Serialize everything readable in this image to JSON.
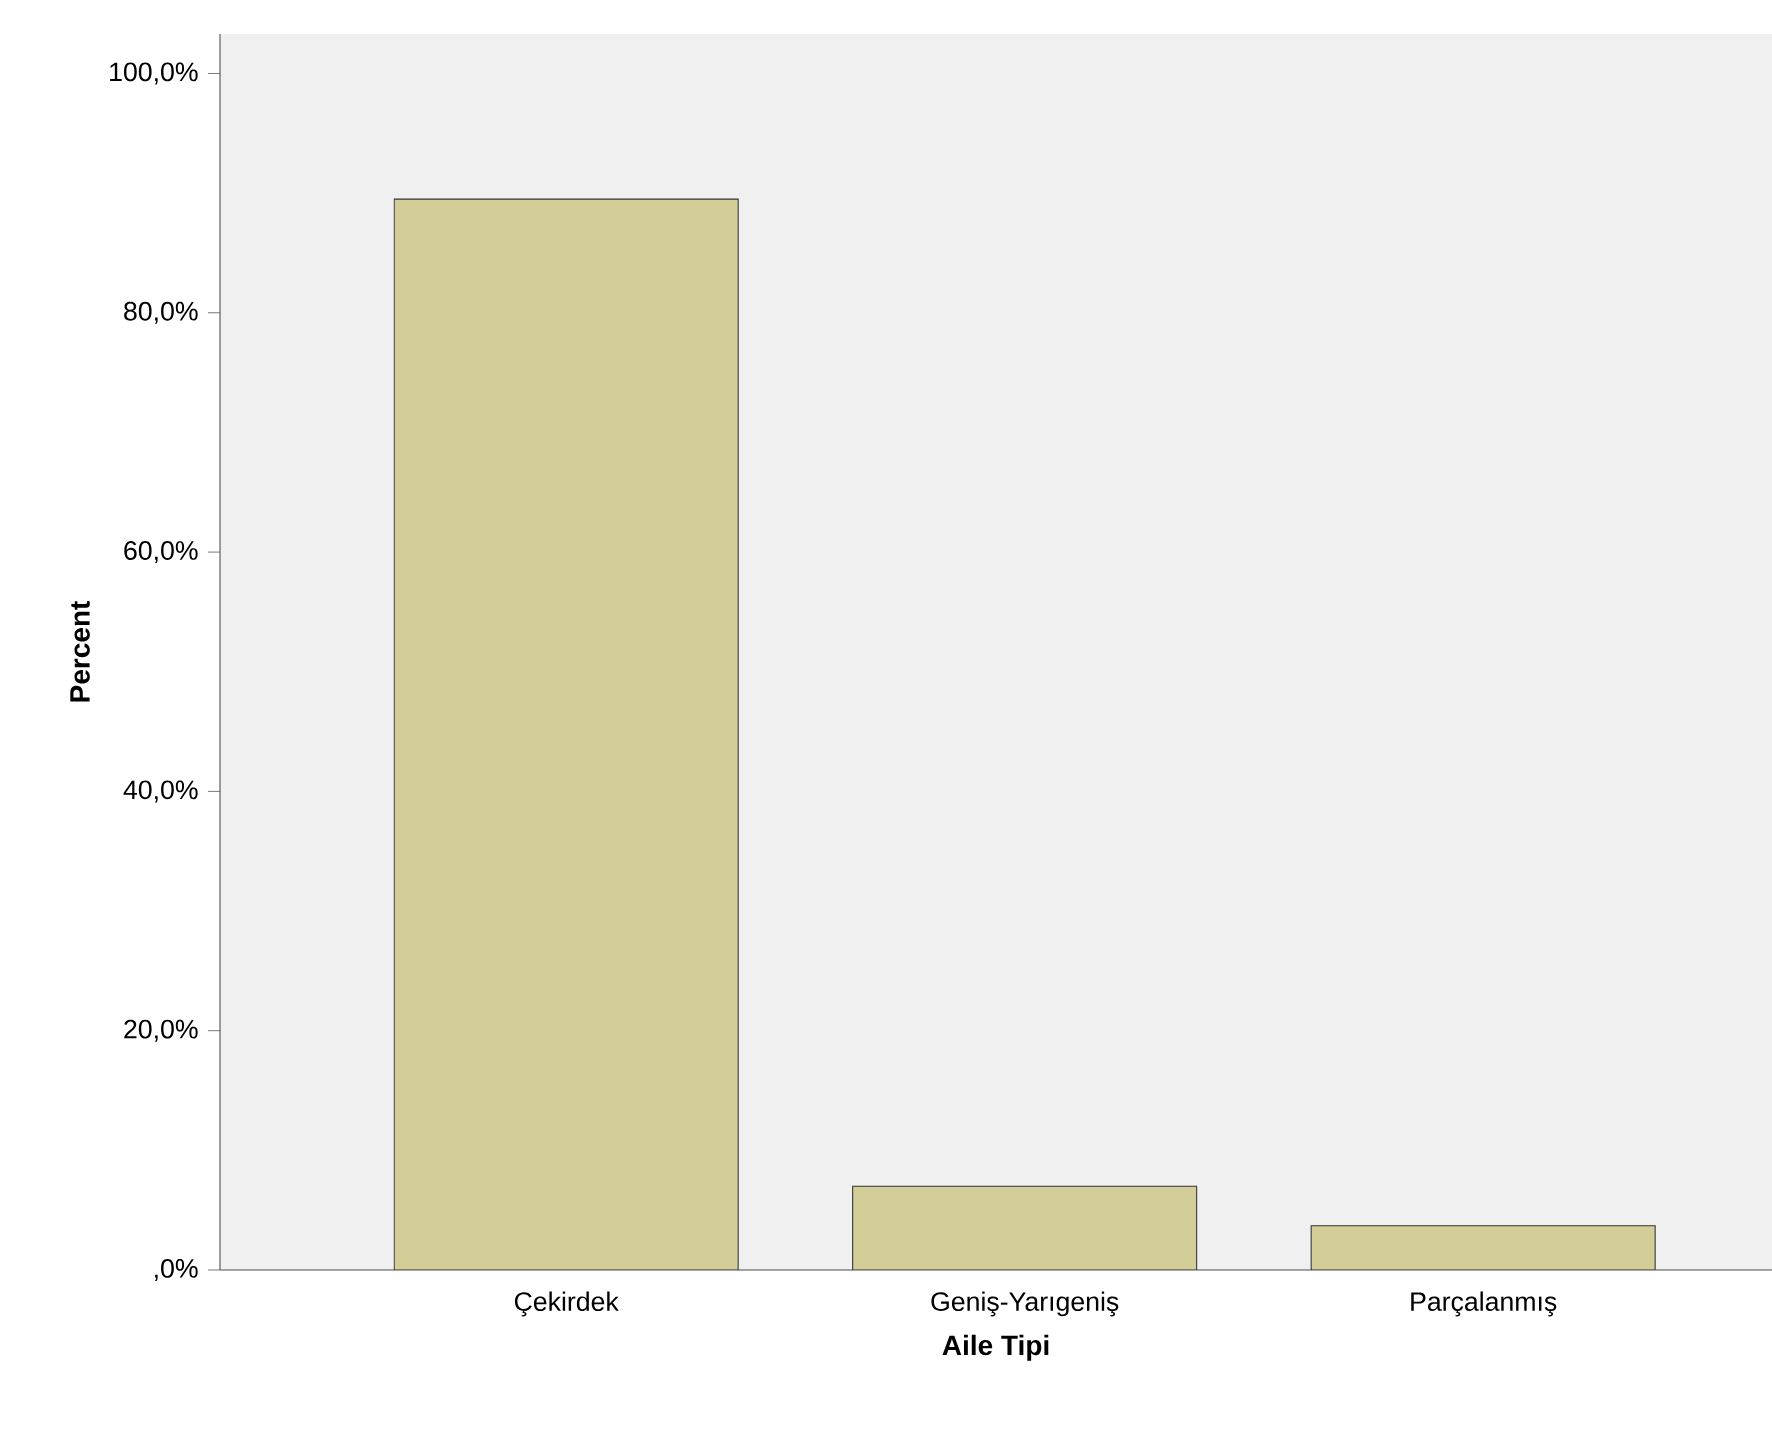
{
  "chart_data": {
    "type": "bar",
    "xlabel": "Aile Tipi",
    "ylabel": "Percent",
    "categories": [
      "Çekirdek",
      "Geniş-Yarıgeniş",
      "Parçalanmış"
    ],
    "values": [
      89.5,
      7.0,
      3.7
    ],
    "color": "#d3ce97",
    "ylim": [
      0,
      103.3
    ],
    "yticks": [
      {
        "value": 0,
        "label": ",0%"
      },
      {
        "value": 20,
        "label": "20,0%"
      },
      {
        "value": 40,
        "label": "40,0%"
      },
      {
        "value": 60,
        "label": "60,0%"
      },
      {
        "value": 80,
        "label": "80,0%"
      },
      {
        "value": 100,
        "label": "100,0%"
      }
    ]
  }
}
